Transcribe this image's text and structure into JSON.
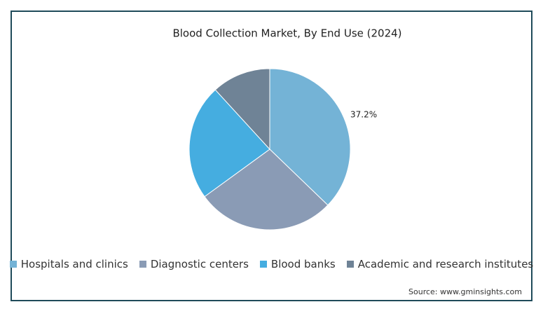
{
  "chart_data": {
    "type": "pie",
    "title": "Blood Collection Market, By End Use (2024)",
    "categories": [
      "Hospitals and clinics",
      "Diagnostic centers",
      "Blood banks",
      "Academic and research institutes"
    ],
    "values": [
      37.2,
      27.8,
      23.2,
      11.8
    ],
    "value_labels": [
      "37.2%",
      null,
      null,
      null
    ],
    "colors": [
      "#74b3d6",
      "#8a9bb5",
      "#45ade0",
      "#6f8396"
    ],
    "legend": "bottom",
    "source": "Source: www.gminsights.com"
  }
}
